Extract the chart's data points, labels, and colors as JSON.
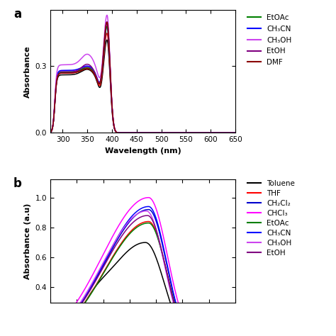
{
  "panel_a": {
    "ylabel": "Absorbance",
    "xlabel": "Wavelength (nm)",
    "xlim": [
      275,
      650
    ],
    "ylim": [
      0.0,
      0.55
    ],
    "yticks": [
      0.0,
      0.3
    ],
    "xticks": [
      300,
      350,
      400,
      450,
      500,
      550,
      600,
      650
    ],
    "label": "a",
    "solvents": [
      "Toluene",
      "THF",
      "CH₂Cl₂",
      "CHCl₃",
      "EtOAc",
      "CH₃CN",
      "CH₃OH",
      "EtOH",
      "DMF"
    ],
    "colors": [
      "#000000",
      "#ff0000",
      "#0000cd",
      "#ff00ff",
      "#008000",
      "#0000ff",
      "#cc44ee",
      "#800080",
      "#8b0000"
    ],
    "legend_solvents": [
      "EtOAc",
      "CH₃CN",
      "CH₃OH",
      "EtOH",
      "DMF"
    ],
    "legend_colors": [
      "#008000",
      "#0000ff",
      "#cc44ee",
      "#800080",
      "#8b0000"
    ]
  },
  "panel_b": {
    "ylabel": "Absorbance (a.u)",
    "xlim": [
      275,
      450
    ],
    "ylim": [
      0.3,
      1.12
    ],
    "yticks": [
      0.4,
      0.6,
      0.8,
      1.0
    ],
    "label": "b",
    "solvents": [
      "Toluene",
      "THF",
      "CH₂Cl₂",
      "CHCl₃",
      "EtOAc",
      "CH₃CN",
      "CH₃OH",
      "EtOH"
    ],
    "colors": [
      "#000000",
      "#ff0000",
      "#0000cd",
      "#ff00ff",
      "#008000",
      "#0000ff",
      "#cc44ee",
      "#800080"
    ],
    "legend_solvents": [
      "Toluene",
      "THF",
      "CH₂Cl₂",
      "CHCl₃",
      "EtOAc",
      "CH₃CN",
      "CH₃OH",
      "EtOH"
    ],
    "legend_colors": [
      "#000000",
      "#ff0000",
      "#0000cd",
      "#ff00ff",
      "#008000",
      "#0000ff",
      "#cc44ee",
      "#800080"
    ]
  }
}
